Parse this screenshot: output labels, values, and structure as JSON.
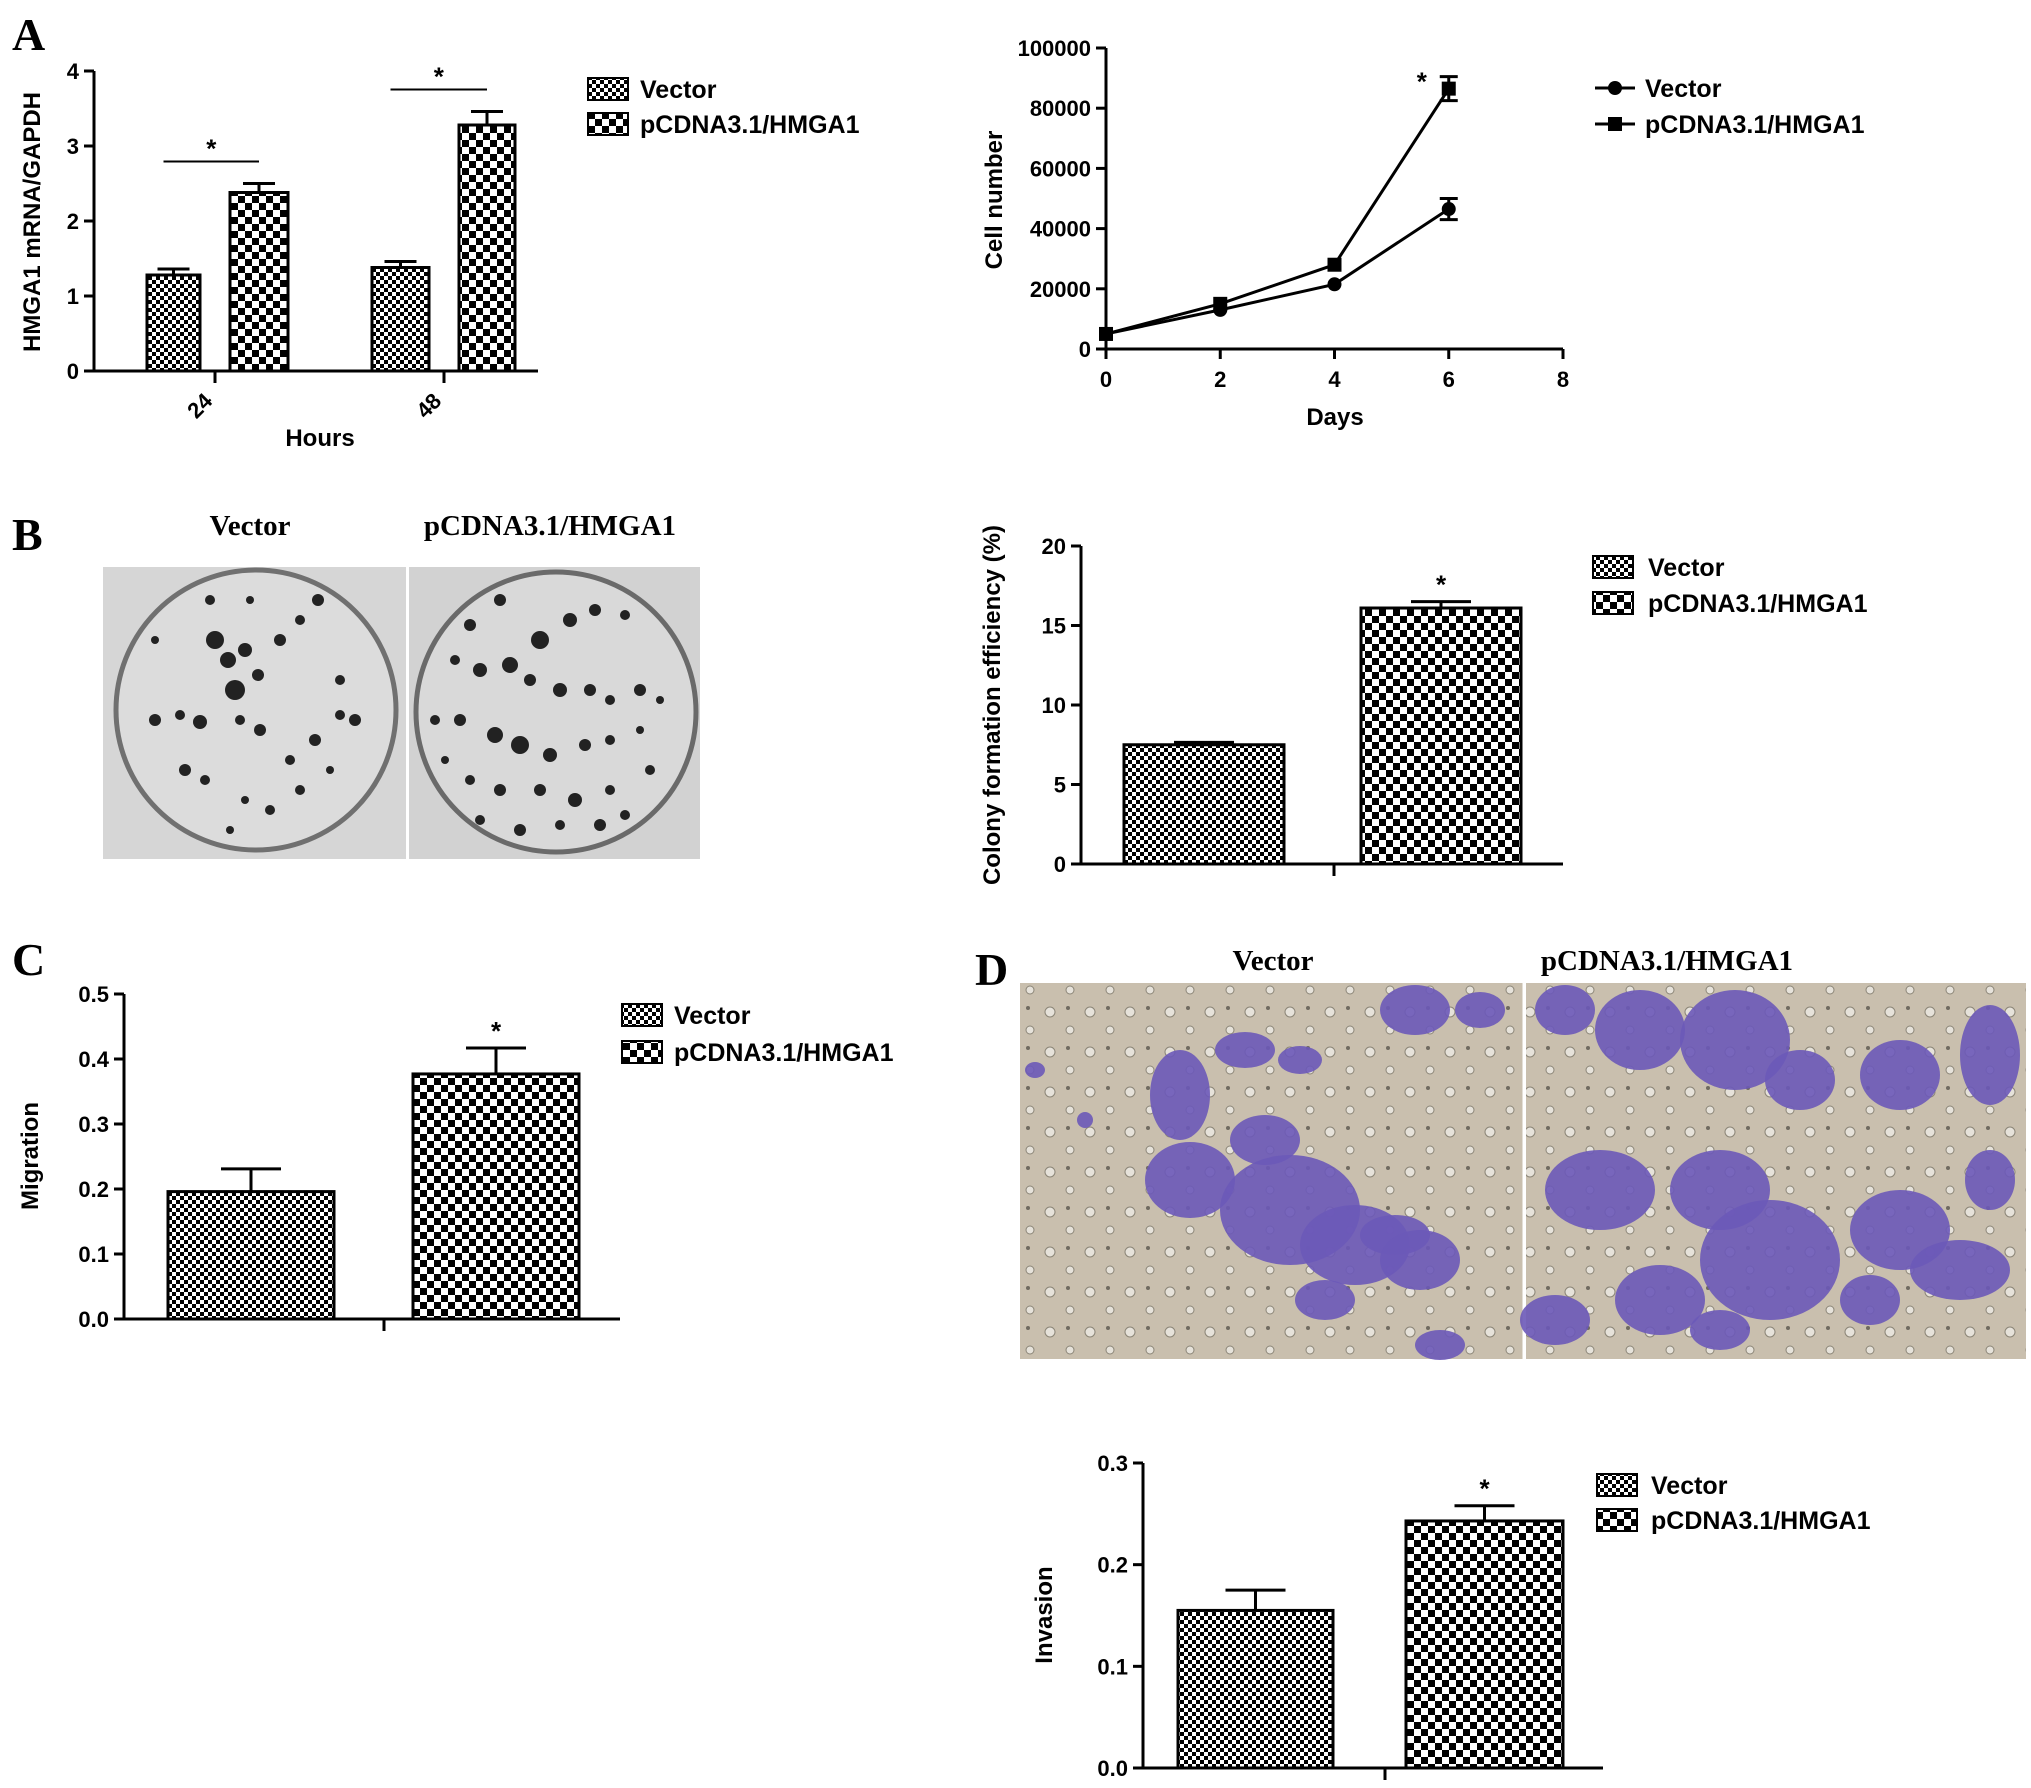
{
  "panels": {
    "A": "A",
    "B": "B",
    "C": "C",
    "D": "D"
  },
  "legend": {
    "vector": "Vector",
    "hmga1": "pCDNA3.1/HMGA1"
  },
  "photos": {
    "B_left_title": "Vector",
    "B_right_title": "pCDNA3.1/HMGA1",
    "D_left_title": "Vector",
    "D_right_title": "pCDNA3.1/HMGA1"
  },
  "chart_data": [
    {
      "id": "A1",
      "type": "bar",
      "ylabel": "HMGA1 mRNA/GAPDH",
      "xlabel": "Hours",
      "categories": [
        "24",
        "48"
      ],
      "ylim": [
        0,
        4
      ],
      "yticks": [
        "0",
        "1",
        "2",
        "3",
        "4"
      ],
      "series": [
        {
          "name": "Vector",
          "values": [
            1.28,
            1.38
          ],
          "errors": [
            0.08,
            0.08
          ]
        },
        {
          "name": "pCDNA3.1/HMGA1",
          "values": [
            2.38,
            3.28
          ],
          "errors": [
            0.12,
            0.18
          ]
        }
      ],
      "significance": [
        "*",
        "*"
      ]
    },
    {
      "id": "A2",
      "type": "line",
      "ylabel": "Cell number",
      "xlabel": "Days",
      "xlim": [
        0,
        8
      ],
      "ylim": [
        0,
        100000
      ],
      "xticks": [
        "0",
        "2",
        "4",
        "6",
        "8"
      ],
      "yticks": [
        "0",
        "20000",
        "40000",
        "60000",
        "80000",
        "100000"
      ],
      "x": [
        0,
        2,
        4,
        6
      ],
      "series": [
        {
          "name": "Vector",
          "marker": "circle",
          "values": [
            5000,
            13000,
            21500,
            46500
          ],
          "errors": [
            0,
            0,
            0,
            3500
          ]
        },
        {
          "name": "pCDNA3.1/HMGA1",
          "marker": "square",
          "values": [
            5000,
            15000,
            28000,
            86500
          ],
          "errors": [
            0,
            0,
            0,
            4000
          ]
        }
      ],
      "significance": "*"
    },
    {
      "id": "B",
      "type": "bar",
      "ylabel": "Colony formation efficiency (%)",
      "categories": [
        "Vector",
        "pCDNA3.1/HMGA1"
      ],
      "ylim": [
        0,
        20
      ],
      "yticks": [
        "0",
        "5",
        "10",
        "15",
        "20"
      ],
      "values": [
        7.5,
        16.1
      ],
      "errors": [
        0.15,
        0.4
      ],
      "significance": "*"
    },
    {
      "id": "C",
      "type": "bar",
      "ylabel": "Migration",
      "categories": [
        "Vector",
        "pCDNA3.1/HMGA1"
      ],
      "ylim": [
        0,
        0.5
      ],
      "yticks": [
        "0.0",
        "0.1",
        "0.2",
        "0.3",
        "0.4",
        "0.5"
      ],
      "values": [
        0.196,
        0.377
      ],
      "errors": [
        0.035,
        0.04
      ],
      "significance": "*"
    },
    {
      "id": "D",
      "type": "bar",
      "ylabel": "Invasion",
      "categories": [
        "Vector",
        "pCDNA3.1/HMGA1"
      ],
      "ylim": [
        0,
        0.3
      ],
      "yticks": [
        "0.0",
        "0.1",
        "0.2",
        "0.3"
      ],
      "values": [
        0.155,
        0.243
      ],
      "errors": [
        0.02,
        0.015
      ],
      "significance": "*"
    }
  ]
}
